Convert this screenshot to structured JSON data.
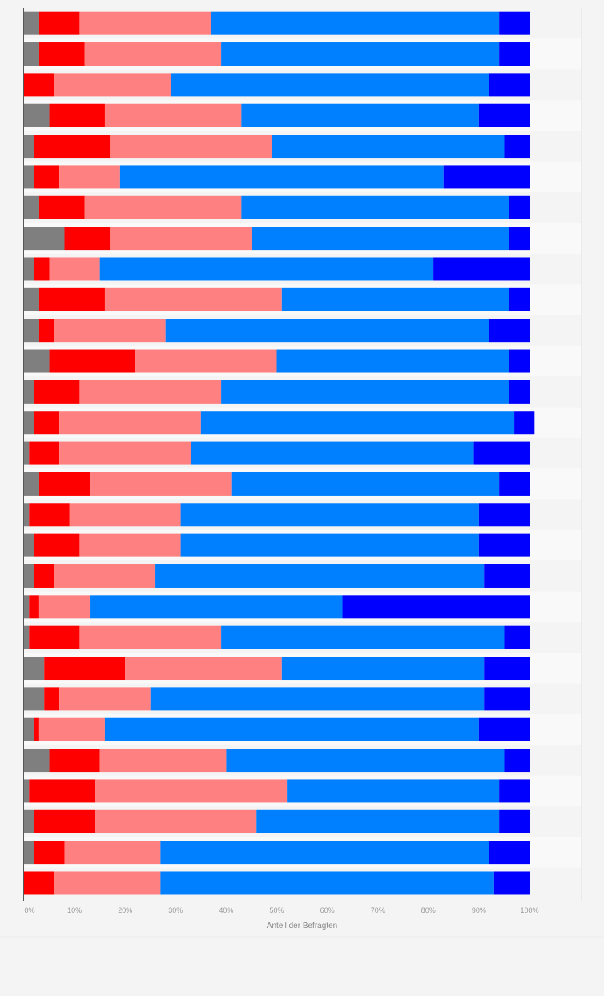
{
  "chart_data": {
    "type": "bar",
    "orientation": "horizontal",
    "stacked": true,
    "xlabel": "Anteil der Befragten",
    "ylabel": "",
    "xlim": [
      0,
      100
    ],
    "xticks": [
      "0%",
      "10%",
      "20%",
      "30%",
      "40%",
      "50%",
      "60%",
      "70%",
      "80%",
      "90%",
      "100%"
    ],
    "grid": false,
    "legend": "none",
    "categories": [
      "",
      "",
      "",
      "",
      "",
      "",
      "",
      "",
      "",
      "",
      "",
      "",
      "",
      "",
      "",
      "",
      "",
      "",
      "",
      "",
      "",
      "",
      "",
      "",
      "",
      "",
      "",
      "",
      ""
    ],
    "series": [
      {
        "color": "#7f7f7f",
        "values": [
          3,
          3,
          0,
          5,
          2,
          2,
          3,
          8,
          2,
          3,
          3,
          5,
          2,
          2,
          1,
          3,
          1,
          2,
          2,
          1,
          1,
          4,
          4,
          2,
          5,
          1,
          2,
          2,
          0
        ]
      },
      {
        "color": "#ff0000",
        "values": [
          8,
          9,
          6,
          11,
          15,
          5,
          9,
          9,
          3,
          13,
          3,
          17,
          9,
          5,
          6,
          10,
          8,
          9,
          4,
          2,
          10,
          16,
          3,
          1,
          10,
          13,
          12,
          6,
          6
        ]
      },
      {
        "color": "#ff8080",
        "values": [
          26,
          27,
          23,
          27,
          32,
          12,
          31,
          28,
          10,
          35,
          22,
          28,
          28,
          28,
          26,
          28,
          22,
          20,
          20,
          10,
          28,
          31,
          18,
          13,
          25,
          38,
          32,
          19,
          21
        ]
      },
      {
        "color": "#0080ff",
        "values": [
          57,
          55,
          63,
          47,
          46,
          64,
          53,
          51,
          66,
          45,
          64,
          46,
          57,
          62,
          56,
          53,
          59,
          59,
          65,
          50,
          56,
          40,
          66,
          74,
          55,
          42,
          48,
          65,
          66
        ]
      },
      {
        "color": "#0000ff",
        "values": [
          6,
          6,
          8,
          10,
          5,
          17,
          4,
          4,
          19,
          4,
          8,
          4,
          4,
          4,
          11,
          6,
          10,
          10,
          9,
          37,
          5,
          9,
          9,
          10,
          5,
          6,
          6,
          8,
          7
        ]
      }
    ]
  }
}
